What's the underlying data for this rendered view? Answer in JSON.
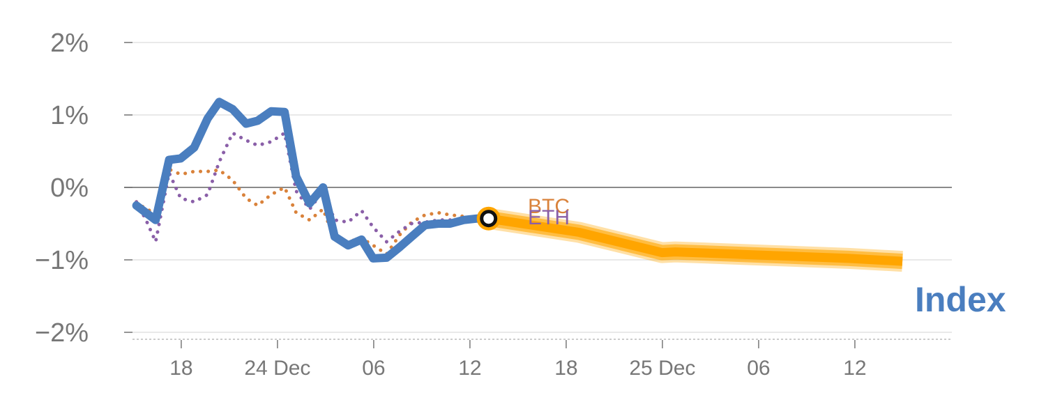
{
  "chart_data": {
    "type": "line",
    "title": "",
    "xlabel": "",
    "ylabel": "",
    "ylim": [
      -2,
      2
    ],
    "yticks": [
      {
        "value": 2,
        "label": "2%"
      },
      {
        "value": 1,
        "label": "1%"
      },
      {
        "value": 0,
        "label": "0%"
      },
      {
        "value": -1,
        "label": "−1%"
      },
      {
        "value": -2,
        "label": "−2%"
      }
    ],
    "xrange": [
      0,
      42
    ],
    "xticks": [
      {
        "pos": 3.33,
        "label": "18"
      },
      {
        "pos": 8.33,
        "label": "24 Dec"
      },
      {
        "pos": 13.33,
        "label": "06"
      },
      {
        "pos": 18.33,
        "label": "12"
      },
      {
        "pos": 23.33,
        "label": "18"
      },
      {
        "pos": 28.33,
        "label": "25 Dec"
      },
      {
        "pos": 33.33,
        "label": "06"
      },
      {
        "pos": 38.33,
        "label": "12"
      }
    ],
    "x": [
      1,
      1.5,
      2,
      2.7,
      3.3,
      4,
      4.7,
      5.3,
      6,
      6.7,
      7.3,
      8,
      8.7,
      9.3,
      10,
      10.7,
      11.3,
      12,
      12.7,
      13.3,
      14,
      14.7,
      15.3,
      16,
      16.7,
      17.3,
      18,
      18.7,
      19.3
    ],
    "series": [
      {
        "name": "Index",
        "color": "#4a7ebf",
        "style": "solid",
        "values": [
          -0.25,
          -0.35,
          -0.45,
          0.38,
          0.4,
          0.55,
          0.95,
          1.18,
          1.08,
          0.88,
          0.92,
          1.05,
          1.04,
          0.15,
          -0.22,
          0.0,
          -0.68,
          -0.8,
          -0.72,
          -0.98,
          -0.97,
          -0.82,
          -0.68,
          -0.52,
          -0.5,
          -0.5,
          -0.45,
          -0.43,
          -0.43
        ]
      },
      {
        "name": "BTC",
        "color": "#d9823b",
        "style": "dotted",
        "values": [
          -0.2,
          -0.3,
          -0.35,
          0.25,
          0.18,
          0.22,
          0.22,
          0.24,
          0.1,
          -0.15,
          -0.25,
          -0.1,
          0.0,
          -0.35,
          -0.45,
          -0.3,
          -0.72,
          -0.75,
          -0.7,
          -0.8,
          -0.92,
          -0.65,
          -0.48,
          -0.38,
          -0.35,
          -0.38,
          -0.4,
          -0.42,
          -0.43
        ]
      },
      {
        "name": "ETH",
        "color": "#8a5fa8",
        "style": "dotted",
        "values": [
          -0.2,
          -0.45,
          -0.75,
          0.2,
          -0.15,
          -0.2,
          -0.1,
          0.35,
          0.75,
          0.65,
          0.58,
          0.63,
          0.75,
          -0.05,
          -0.3,
          -0.05,
          -0.45,
          -0.48,
          -0.32,
          -0.55,
          -0.75,
          -0.6,
          -0.5,
          -0.48,
          -0.45,
          -0.45,
          -0.44,
          -0.43,
          -0.43
        ]
      }
    ],
    "forecast": {
      "name": "Index forecast",
      "color": "#ffa500",
      "x": [
        19.3,
        24.0,
        28.3,
        29.0,
        33.0,
        38.0,
        40.8
      ],
      "values": [
        -0.43,
        -0.62,
        -0.9,
        -0.89,
        -0.93,
        -0.98,
        -1.02
      ]
    },
    "current_marker": {
      "x": 19.3,
      "value": -0.43
    },
    "annotations": {
      "btc_label": "BTC",
      "eth_label": "ETH",
      "index_label": "Index"
    }
  }
}
